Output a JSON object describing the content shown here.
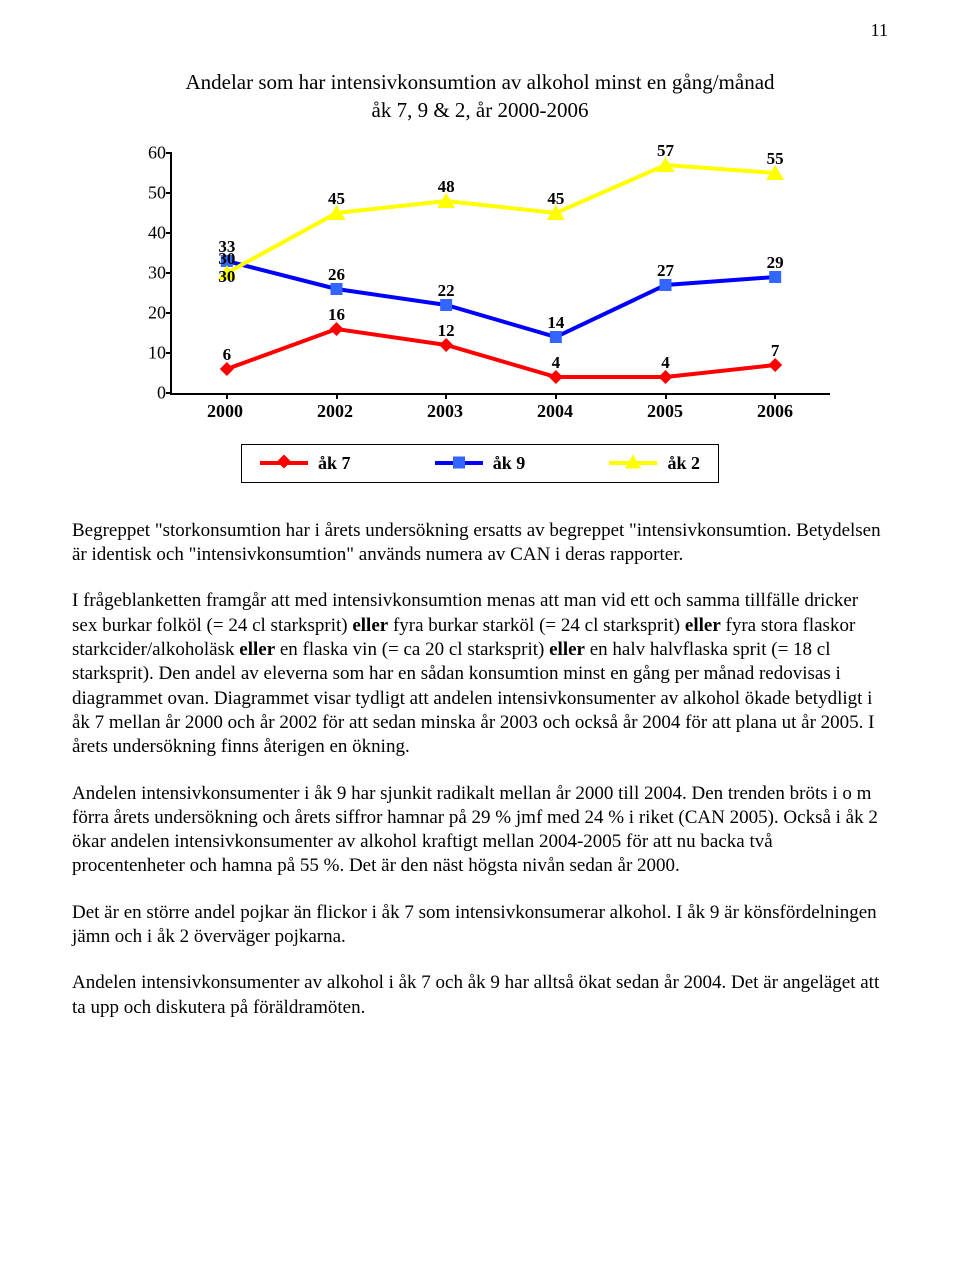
{
  "page_number": "11",
  "chart": {
    "title_line1": "Andelar som har intensivkonsumtion av alkohol minst en gång/månad",
    "title_line2": "åk 7, 9 & 2, år 2000-2006",
    "ymin": 0,
    "ymax": 60,
    "ystep": 10,
    "yticks": [
      0,
      10,
      20,
      30,
      40,
      50,
      60
    ],
    "xlabels": [
      "2000",
      "2002",
      "2003",
      "2004",
      "2005",
      "2006"
    ],
    "series": [
      {
        "name": "åk 7",
        "color": "#ff0000",
        "marker": "diamond",
        "marker_fill": "#ff0000",
        "values": [
          6,
          16,
          12,
          4,
          4,
          7
        ]
      },
      {
        "name": "åk 9",
        "color": "#0000ff",
        "marker": "square",
        "marker_fill": "#3366ff",
        "values": [
          33,
          26,
          22,
          14,
          27,
          29
        ],
        "secondary": [
          30,
          null,
          null,
          null,
          null,
          null
        ]
      },
      {
        "name": "åk 2",
        "color": "#ffff00",
        "marker": "triangle",
        "marker_fill": "#ffff00",
        "values": [
          30,
          45,
          48,
          45,
          57,
          55
        ]
      }
    ],
    "legend": [
      "åk 7",
      "åk 9",
      "åk 2"
    ]
  },
  "paragraphs": [
    "Begreppet \"storkonsumtion har i årets undersökning ersatts av begreppet \"intensivkonsumtion. Betydelsen är identisk och \"intensivkonsumtion\" används numera av CAN i deras rapporter.",
    "I frågeblanketten framgår att med intensivkonsumtion menas att man vid ett och samma tillfälle dricker sex burkar folköl (= 24 cl starksprit) <b>eller</b> fyra burkar starköl (= 24 cl starksprit) <b>eller</b> fyra stora flaskor starkcider/alkoholäsk <b>eller</b> en flaska vin (= ca 20 cl starksprit) <b>eller</b> en halv halvflaska sprit (= 18 cl starksprit). Den andel av eleverna som har en sådan konsumtion minst en gång per månad redovisas i diagrammet ovan. Diagrammet visar tydligt att andelen intensivkonsumenter av alkohol ökade betydligt i åk 7 mellan år 2000 och år 2002 för att sedan minska år 2003 och också år 2004 för att plana ut år 2005. I årets undersökning finns återigen en ökning.",
    "Andelen intensivkonsumenter i åk 9 har sjunkit radikalt mellan år 2000 till 2004. Den trenden bröts i o m förra årets undersökning och årets siffror hamnar på 29 % jmf med 24 % i riket (CAN 2005). Också i åk 2 ökar andelen intensivkonsumenter av alkohol kraftigt mellan 2004-2005 för att nu backa två procentenheter och hamna på 55 %. Det är den näst högsta nivån sedan år 2000.",
    "Det är en större andel pojkar än flickor i åk 7 som intensivkonsumerar alkohol. I åk 9 är könsfördelningen jämn och i åk 2 överväger pojkarna.",
    "Andelen intensivkonsumenter av alkohol i åk 7 och åk 9 har alltså ökat sedan år 2004. Det är angeläget att ta upp och diskutera på föräldramöten."
  ]
}
